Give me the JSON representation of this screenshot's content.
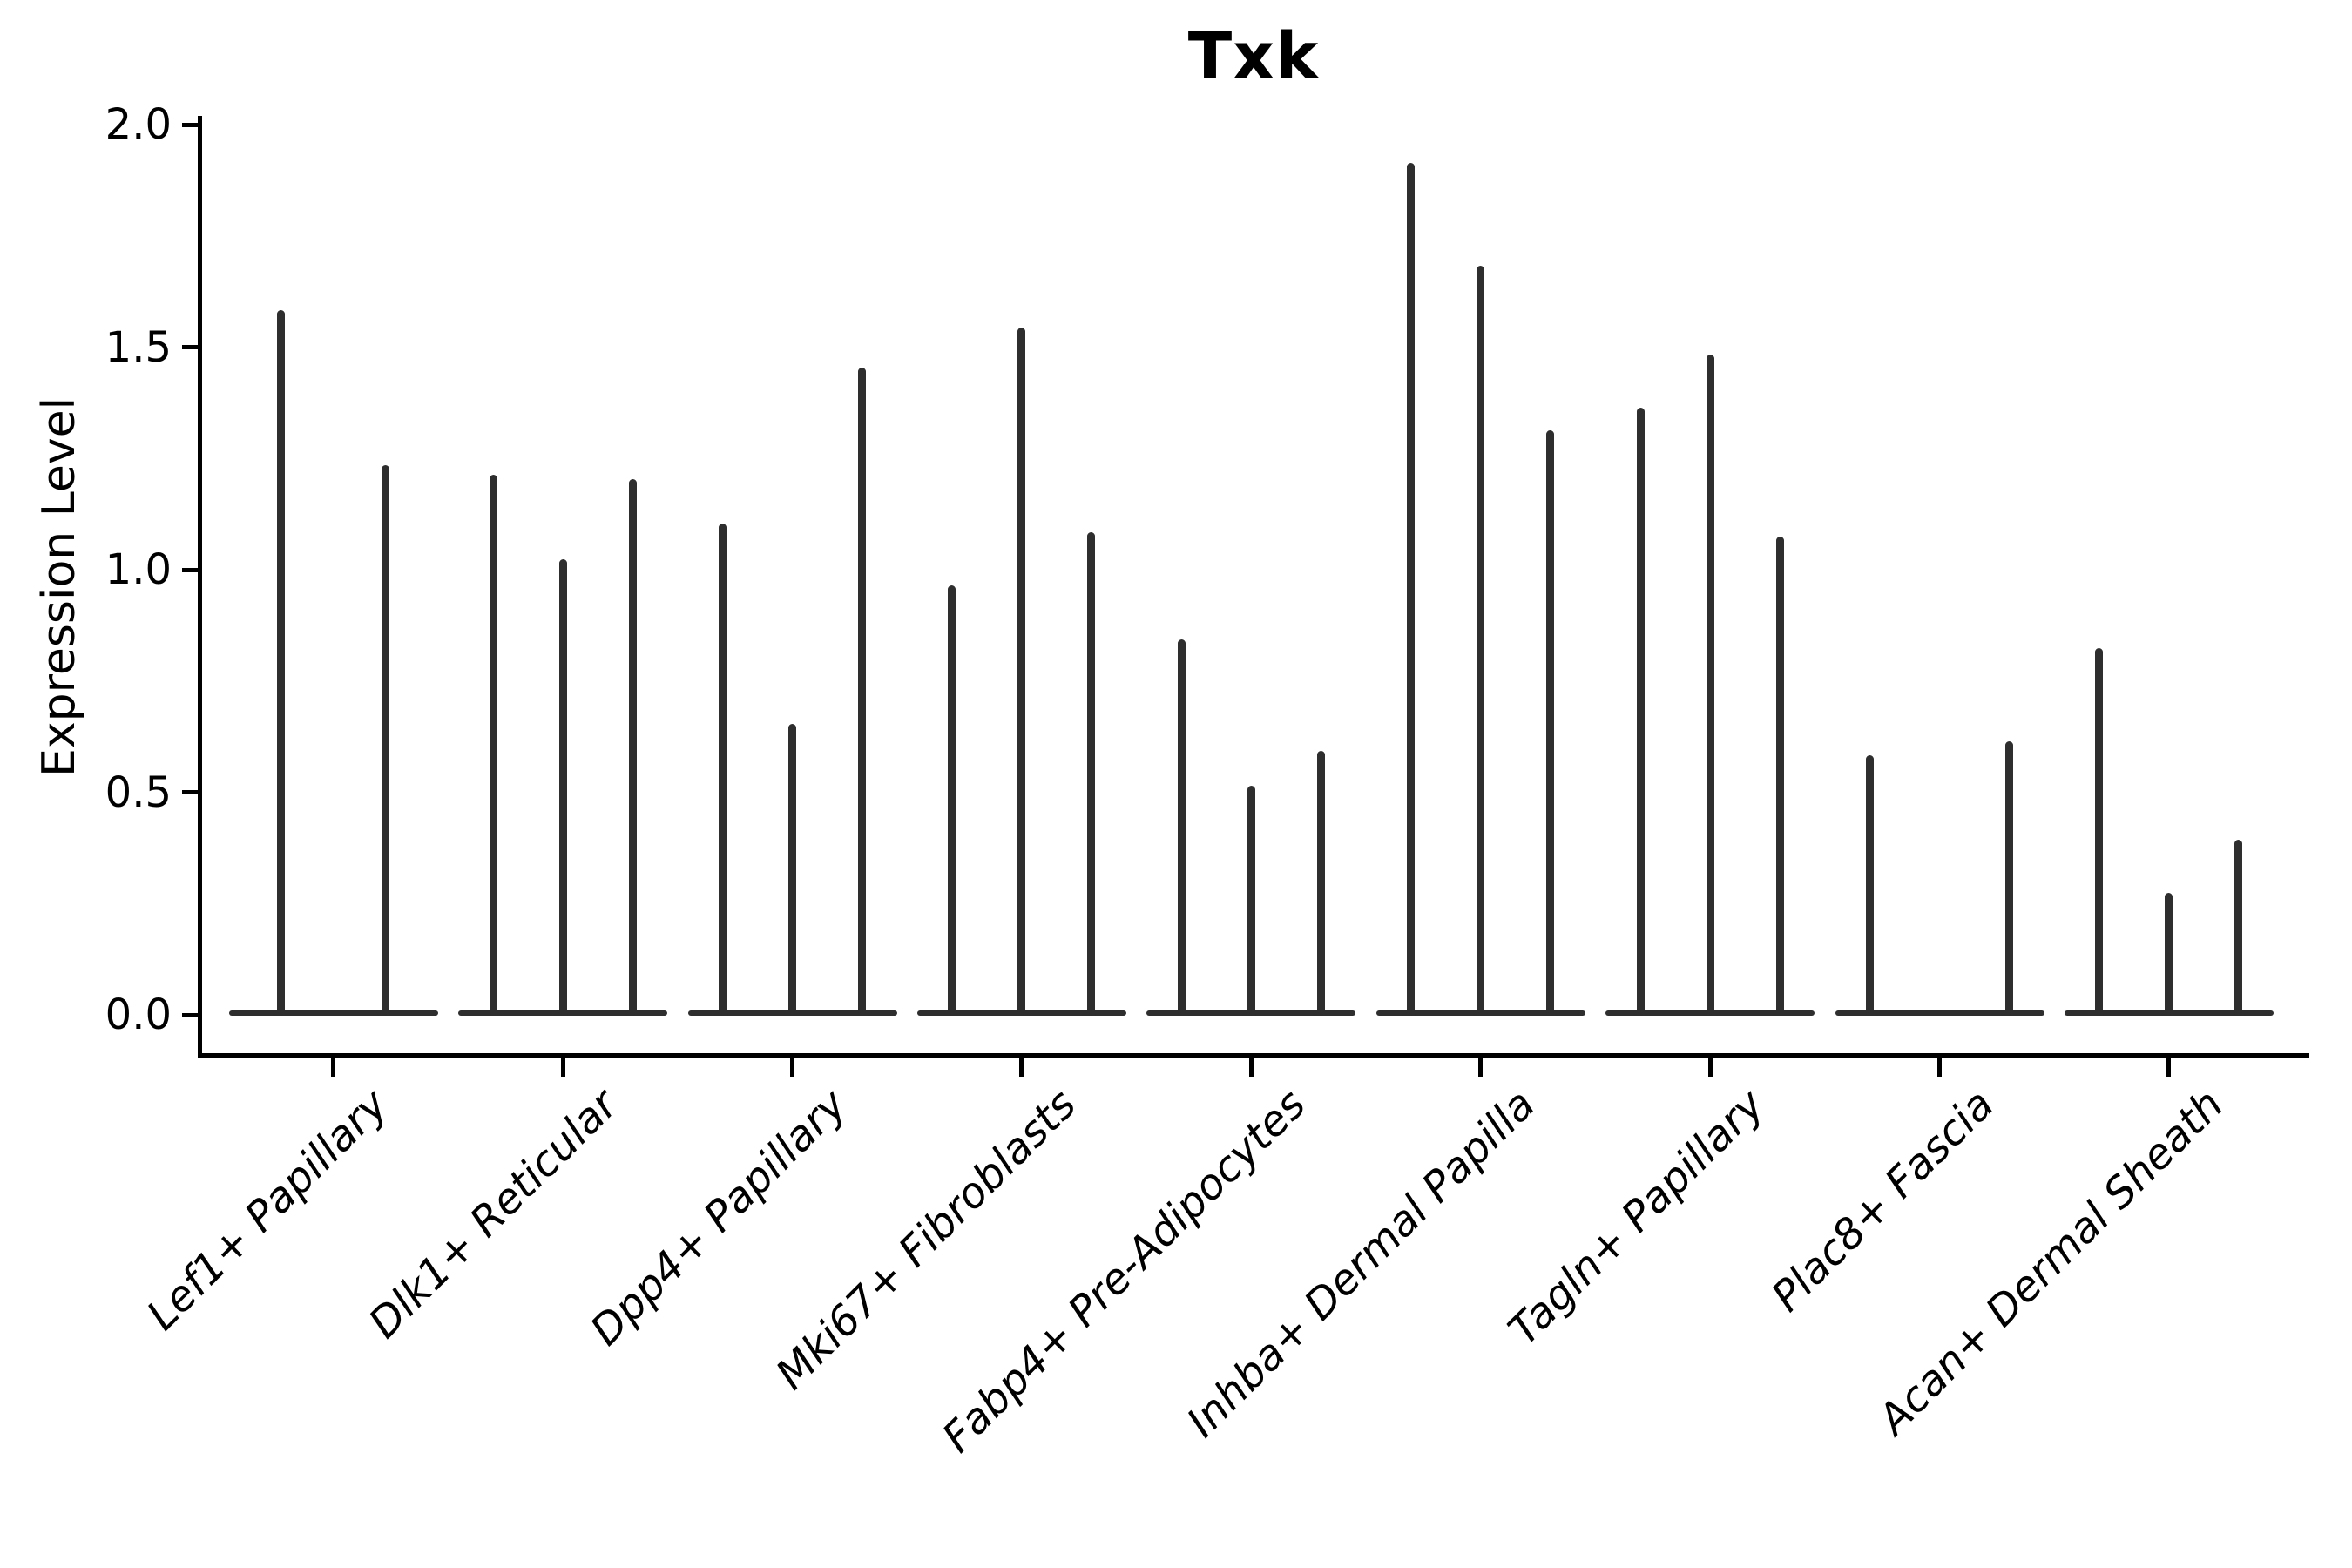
{
  "title": "Txk",
  "y_axis": {
    "label": "Expression Level",
    "tick_labels": [
      "2.0",
      "1.5",
      "1.0",
      "0.5",
      "0.0"
    ]
  },
  "chart_data": {
    "type": "violin",
    "title": "Txk",
    "ylabel": "Expression Level",
    "xlabel": "",
    "ylim": [
      0.0,
      2.0
    ],
    "yticks": [
      2.0,
      1.5,
      1.0,
      0.5,
      0.0
    ],
    "grid": false,
    "legend": "none",
    "description": "Needle-shaped violins (expression concentrated at 0 with a thin density spike up to the max expressed value); each cell-type group contains 2-3 sub-violins.",
    "violin_color": "#2e2e2e",
    "categories": [
      "Lef1+ Papillary",
      "Dlk1+ Reticular",
      "Dpp4+ Papillary",
      "Mki67+ Fibroblasts",
      "Fabp4+ Pre-Adipocytes",
      "Inhba+ Dermal Papilla",
      "Tagln+ Papillary",
      "Plac8+ Fascia",
      "Acan+ Dermal Sheath"
    ],
    "groups": [
      {
        "label": "Lef1+ Papillary",
        "violin_max_values": [
          1.58,
          1.23
        ]
      },
      {
        "label": "Dlk1+ Reticular",
        "violin_max_values": [
          1.21,
          1.02,
          1.2
        ]
      },
      {
        "label": "Dpp4+ Papillary",
        "violin_max_values": [
          1.1,
          0.65,
          1.45
        ]
      },
      {
        "label": "Mki67+ Fibroblasts",
        "violin_max_values": [
          0.96,
          1.54,
          1.08
        ]
      },
      {
        "label": "Fabp4+ Pre-Adipocytes",
        "violin_max_values": [
          0.84,
          0.51,
          0.59
        ]
      },
      {
        "label": "Inhba+ Dermal Papilla",
        "violin_max_values": [
          1.91,
          1.68,
          1.31
        ]
      },
      {
        "label": "Tagln+ Papillary",
        "violin_max_values": [
          1.36,
          1.48,
          1.07
        ]
      },
      {
        "label": "Plac8+ Fascia",
        "violin_max_values": [
          0.58,
          0.0,
          0.61
        ]
      },
      {
        "label": "Acan+ Dermal Sheath",
        "violin_max_values": [
          0.82,
          0.27,
          0.39
        ]
      }
    ]
  }
}
